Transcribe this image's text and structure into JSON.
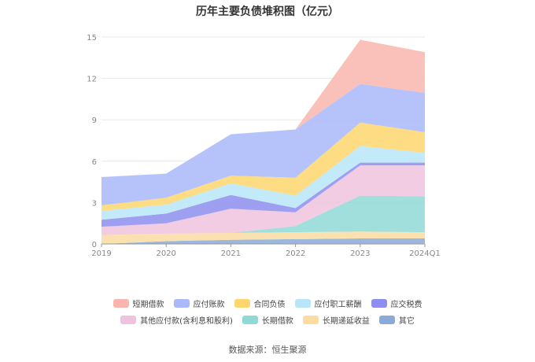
{
  "chart_data": {
    "type": "area",
    "stacked": true,
    "title": "历年主要负债堆积图（亿元）",
    "categories": [
      "2019",
      "2020",
      "2021",
      "2022",
      "2023",
      "2024Q1"
    ],
    "y_ticks": [
      "0",
      "3",
      "6",
      "9",
      "12",
      "15"
    ],
    "ylim": [
      0,
      15
    ],
    "grid": true,
    "legend_position": "bottom",
    "series": [
      {
        "name": "其它",
        "color": "#8aaad8",
        "values": [
          0.0,
          0.2,
          0.3,
          0.35,
          0.4,
          0.4
        ]
      },
      {
        "name": "长期递延收益",
        "color": "#fcdca2",
        "values": [
          0.65,
          0.55,
          0.5,
          0.5,
          0.5,
          0.45
        ]
      },
      {
        "name": "长期借款",
        "color": "#8fd9d6",
        "values": [
          0.0,
          0.0,
          0.0,
          0.45,
          2.6,
          2.6
        ]
      },
      {
        "name": "其他应付款(含利息和股利)",
        "color": "#efc3de",
        "values": [
          0.6,
          0.75,
          1.75,
          1.0,
          2.2,
          2.25
        ]
      },
      {
        "name": "应交税费",
        "color": "#8e8ef0",
        "values": [
          0.5,
          0.7,
          1.0,
          0.3,
          0.2,
          0.2
        ]
      },
      {
        "name": "应付职工薪酬",
        "color": "#b8e6f8",
        "values": [
          0.65,
          0.65,
          0.85,
          0.9,
          1.2,
          0.7
        ]
      },
      {
        "name": "合同负债",
        "color": "#fdd66e",
        "values": [
          0.4,
          0.5,
          0.55,
          1.3,
          1.7,
          1.5
        ]
      },
      {
        "name": "应付账款",
        "color": "#a9b9fa",
        "values": [
          2.05,
          1.75,
          3.0,
          3.5,
          2.8,
          2.85
        ]
      },
      {
        "name": "短期借款",
        "color": "#f9b5ae",
        "values": [
          0.0,
          0.0,
          0.0,
          0.0,
          3.2,
          2.95
        ]
      }
    ],
    "legend_rows": [
      [
        "短期借款",
        "应付账款",
        "合同负债",
        "应付职工薪酬",
        "应交税费"
      ],
      [
        "其他应付款(含利息和股利)",
        "长期借款",
        "长期递延收益",
        "其它"
      ]
    ],
    "source": "数据来源：恒生聚源"
  }
}
